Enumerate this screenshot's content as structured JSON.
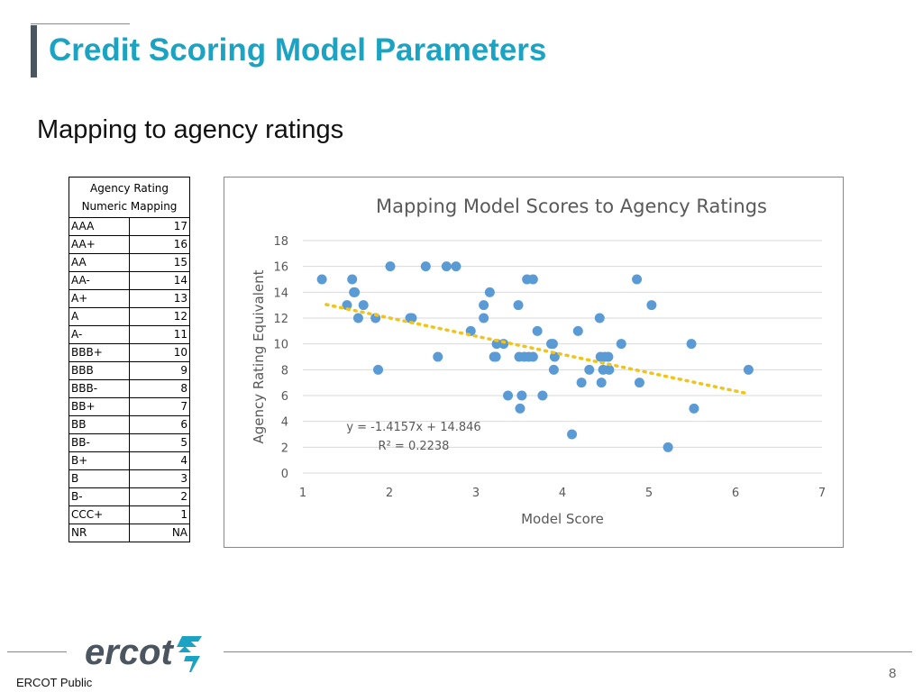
{
  "header": {
    "title": "Credit Scoring Model Parameters",
    "subtitle": "Mapping to agency ratings"
  },
  "mapping_table": {
    "header_line1": "Agency Rating",
    "header_line2": "Numeric Mapping",
    "rows": [
      {
        "rating": "AAA",
        "value": "17"
      },
      {
        "rating": "AA+",
        "value": "16"
      },
      {
        "rating": "AA",
        "value": "15"
      },
      {
        "rating": "AA-",
        "value": "14"
      },
      {
        "rating": "A+",
        "value": "13"
      },
      {
        "rating": "A",
        "value": "12"
      },
      {
        "rating": "A-",
        "value": "11"
      },
      {
        "rating": "BBB+",
        "value": "10"
      },
      {
        "rating": "BBB",
        "value": "9"
      },
      {
        "rating": "BBB-",
        "value": "8"
      },
      {
        "rating": "BB+",
        "value": "7"
      },
      {
        "rating": "BB",
        "value": "6"
      },
      {
        "rating": "BB-",
        "value": "5"
      },
      {
        "rating": "B+",
        "value": "4"
      },
      {
        "rating": "B",
        "value": "3"
      },
      {
        "rating": "B-",
        "value": "2"
      },
      {
        "rating": "CCC+",
        "value": "1"
      },
      {
        "rating": "NR",
        "value": "NA"
      }
    ]
  },
  "chart_data": {
    "type": "scatter",
    "title": "Mapping Model Scores to Agency Ratings",
    "xlabel": "Model Score",
    "ylabel": "Agency Rating Equivalent",
    "xlim": [
      1,
      7
    ],
    "ylim": [
      0,
      18
    ],
    "xticks": [
      1,
      2,
      3,
      4,
      5,
      6,
      7
    ],
    "yticks": [
      0,
      2,
      4,
      6,
      8,
      10,
      12,
      14,
      16,
      18
    ],
    "grid": true,
    "point_color": "#5b9bd5",
    "trendline": {
      "slope": -1.4157,
      "intercept": 14.846,
      "x_range": [
        1.27,
        6.15
      ],
      "color": "#f0c419",
      "style": "dotted",
      "equation_label": "y = -1.4157x + 14.846",
      "r2_label": "R² = 0.2238"
    },
    "points": [
      [
        1.22,
        15
      ],
      [
        1.51,
        13
      ],
      [
        1.57,
        15
      ],
      [
        1.59,
        14
      ],
      [
        1.6,
        14
      ],
      [
        1.64,
        12
      ],
      [
        1.7,
        13
      ],
      [
        1.84,
        12
      ],
      [
        1.87,
        8
      ],
      [
        2.01,
        16
      ],
      [
        2.24,
        12
      ],
      [
        2.26,
        12
      ],
      [
        2.42,
        16
      ],
      [
        2.56,
        9
      ],
      [
        2.66,
        16
      ],
      [
        2.77,
        16
      ],
      [
        2.94,
        11
      ],
      [
        3.09,
        13
      ],
      [
        3.09,
        12
      ],
      [
        3.16,
        14
      ],
      [
        3.21,
        9
      ],
      [
        3.23,
        9
      ],
      [
        3.24,
        10
      ],
      [
        3.32,
        10
      ],
      [
        3.37,
        6
      ],
      [
        3.49,
        13
      ],
      [
        3.5,
        9
      ],
      [
        3.51,
        5
      ],
      [
        3.53,
        6
      ],
      [
        3.56,
        9
      ],
      [
        3.59,
        15
      ],
      [
        3.61,
        9
      ],
      [
        3.66,
        9
      ],
      [
        3.66,
        15
      ],
      [
        3.71,
        11
      ],
      [
        3.77,
        6
      ],
      [
        3.87,
        10
      ],
      [
        3.89,
        10
      ],
      [
        3.9,
        8
      ],
      [
        3.91,
        9
      ],
      [
        4.11,
        3
      ],
      [
        4.18,
        11
      ],
      [
        4.22,
        7
      ],
      [
        4.31,
        8
      ],
      [
        4.43,
        12
      ],
      [
        4.44,
        9
      ],
      [
        4.45,
        7
      ],
      [
        4.47,
        8
      ],
      [
        4.49,
        9
      ],
      [
        4.53,
        9
      ],
      [
        4.54,
        8
      ],
      [
        4.68,
        10
      ],
      [
        4.86,
        15
      ],
      [
        4.89,
        7
      ],
      [
        5.03,
        13
      ],
      [
        5.22,
        2
      ],
      [
        5.49,
        10
      ],
      [
        5.52,
        5
      ],
      [
        6.15,
        8
      ]
    ]
  },
  "footer": {
    "logo_text": "ercot",
    "page_number": "8",
    "classification": "ERCOT Public"
  }
}
